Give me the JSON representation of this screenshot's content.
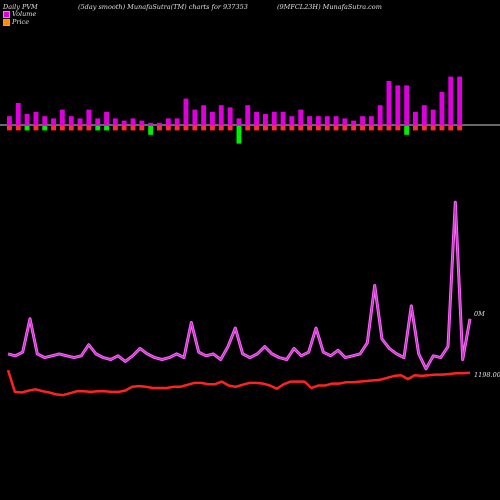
{
  "header": {
    "left": "Daily PVM",
    "middle": "(5day smooth) MunafaSutra(TM) charts for 937353",
    "right": "(9MFCL23H) MunafaSutra.com"
  },
  "legend": [
    {
      "label": "Volume",
      "color": "#dd00dd"
    },
    {
      "label": "Price",
      "color": "#ff5a00"
    }
  ],
  "chart_data": {
    "type": "bar",
    "volume": {
      "series": [
        {
          "name": "Volume",
          "values": [
            4,
            10,
            5,
            6,
            4,
            3,
            7,
            4,
            3,
            7,
            3,
            6,
            3,
            2,
            3,
            2,
            1,
            1,
            3,
            3,
            12,
            7,
            9,
            6,
            9,
            8,
            3,
            9,
            6,
            5,
            6,
            6,
            4,
            7,
            4,
            4,
            4,
            4,
            3,
            2,
            4,
            4,
            9,
            20,
            18,
            18,
            6,
            9,
            7,
            15,
            22,
            22
          ]
        },
        {
          "name": "down",
          "values": [
            0,
            0,
            0,
            0,
            0,
            0,
            0,
            0,
            0,
            0,
            0,
            0,
            0,
            0,
            0,
            0,
            2,
            0,
            0,
            0,
            0,
            0,
            0,
            0,
            0,
            0,
            6,
            0,
            0,
            0,
            0,
            0,
            0,
            0,
            0,
            0,
            0,
            0,
            0,
            0,
            0,
            0,
            0,
            0,
            0,
            2,
            0,
            0,
            0,
            0,
            0,
            0
          ]
        },
        {
          "name": "updown",
          "values": [
            "up",
            "up",
            "down",
            "up",
            "down",
            "up",
            "up",
            "up",
            "up",
            "up",
            "down",
            "down",
            "up",
            "up",
            "up",
            "up",
            "down",
            "up",
            "up",
            "up",
            "up",
            "up",
            "up",
            "up",
            "up",
            "up",
            "down",
            "up",
            "up",
            "up",
            "up",
            "up",
            "up",
            "up",
            "up",
            "up",
            "up",
            "up",
            "up",
            "up",
            "up",
            "up",
            "up",
            "up",
            "up",
            "down",
            "up",
            "up",
            "up",
            "up",
            "up",
            "up"
          ]
        }
      ]
    },
    "pvm_line": {
      "name": "Volume",
      "values": [
        13,
        12,
        14,
        32,
        13,
        11,
        12,
        13,
        12,
        11,
        12,
        18,
        13,
        11,
        10,
        12,
        9,
        12,
        16,
        13,
        11,
        10,
        11,
        13,
        11,
        30,
        14,
        12,
        13,
        10,
        17,
        27,
        13,
        11,
        13,
        17,
        13,
        11,
        10,
        16,
        12,
        14,
        27,
        14,
        12,
        15,
        11,
        12,
        13,
        19,
        50,
        21,
        16,
        13,
        11,
        39,
        13,
        5,
        12,
        11,
        17,
        95,
        10,
        32
      ]
    },
    "price_line": {
      "name": "Price",
      "values": [
        1192,
        1158,
        1157,
        1160,
        1162,
        1159,
        1157,
        1154,
        1153,
        1156,
        1159,
        1159,
        1158,
        1159,
        1159,
        1158,
        1158,
        1160,
        1166,
        1167,
        1166,
        1164,
        1164,
        1164,
        1166,
        1166,
        1169,
        1172,
        1172,
        1170,
        1170,
        1174,
        1168,
        1166,
        1169,
        1172,
        1172,
        1171,
        1168,
        1163,
        1170,
        1174,
        1174,
        1174,
        1164,
        1168,
        1168,
        1171,
        1171,
        1173,
        1173,
        1174,
        1175,
        1176,
        1177,
        1180,
        1183,
        1184,
        1178,
        1184,
        1183,
        1184,
        1185,
        1185,
        1186,
        1187,
        1187,
        1188
      ]
    },
    "annotations": {
      "volume_label": "0M",
      "price_label": "1198.00"
    }
  }
}
